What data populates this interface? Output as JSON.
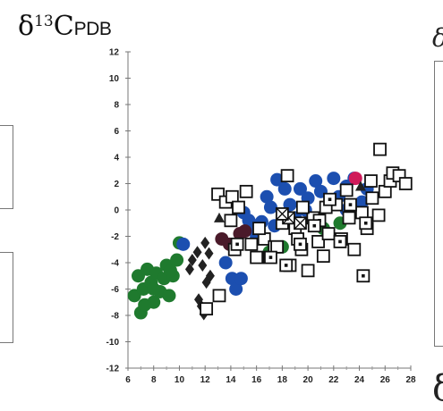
{
  "title": {
    "symbol": "δ",
    "superscript": "13",
    "main": "C",
    "subscript": "PDB"
  },
  "edge_fragments": {
    "top_right": "δ",
    "bottom_right": "δ"
  },
  "chart_data": {
    "type": "scatter",
    "title": "δ13CPDB",
    "xlabel": "",
    "ylabel": "",
    "xlim": [
      6,
      28
    ],
    "ylim": [
      -12,
      12
    ],
    "xticks": [
      6,
      8,
      10,
      12,
      14,
      16,
      18,
      20,
      22,
      24,
      26,
      28
    ],
    "yticks": [
      -12,
      -10,
      -8,
      -6,
      -4,
      -2,
      0,
      2,
      4,
      6,
      8,
      10,
      12
    ],
    "grid": false,
    "legend": "none",
    "series": [
      {
        "marker": "circle-filled",
        "color": "#1f7a2e",
        "points": [
          [
            6.5,
            -6.5
          ],
          [
            6.8,
            -5.0
          ],
          [
            7.0,
            -7.8
          ],
          [
            7.2,
            -6.0
          ],
          [
            7.5,
            -4.5
          ],
          [
            7.8,
            -5.5
          ],
          [
            8.0,
            -7.0
          ],
          [
            8.2,
            -4.8
          ],
          [
            8.5,
            -6.2
          ],
          [
            8.8,
            -5.2
          ],
          [
            9.0,
            -4.2
          ],
          [
            9.2,
            -6.5
          ],
          [
            9.5,
            -5.0
          ],
          [
            9.8,
            -3.8
          ],
          [
            10.0,
            -2.5
          ],
          [
            8.0,
            -6.0
          ],
          [
            7.3,
            -7.2
          ],
          [
            9.3,
            -4.6
          ],
          [
            17.0,
            -3.2
          ],
          [
            21.2,
            -1.4
          ],
          [
            22.5,
            -1.0
          ],
          [
            18.0,
            -2.8
          ]
        ]
      },
      {
        "marker": "circle-filled",
        "color": "#1c4fb0",
        "points": [
          [
            10.3,
            -2.6
          ],
          [
            13.6,
            -4.0
          ],
          [
            14.1,
            -5.2
          ],
          [
            14.4,
            -6.0
          ],
          [
            14.8,
            -5.2
          ],
          [
            15.0,
            -0.2
          ],
          [
            15.5,
            -1.4
          ],
          [
            16.0,
            -2.0
          ],
          [
            16.4,
            -0.9
          ],
          [
            16.8,
            1.0
          ],
          [
            17.1,
            0.2
          ],
          [
            17.4,
            -1.2
          ],
          [
            17.6,
            2.3
          ],
          [
            18.2,
            1.6
          ],
          [
            18.6,
            0.4
          ],
          [
            19.0,
            -0.6
          ],
          [
            19.4,
            1.6
          ],
          [
            20.0,
            0.9
          ],
          [
            20.6,
            2.2
          ],
          [
            21.0,
            1.4
          ],
          [
            21.6,
            0.4
          ],
          [
            22.0,
            2.4
          ],
          [
            22.4,
            1.0
          ],
          [
            23.0,
            1.8
          ],
          [
            23.6,
            2.4
          ],
          [
            24.2,
            0.6
          ],
          [
            24.6,
            1.6
          ],
          [
            15.4,
            -0.8
          ],
          [
            19.8,
            0.0
          ],
          [
            23.0,
            0.0
          ]
        ]
      },
      {
        "marker": "diamond-filled",
        "color": "#222222",
        "points": [
          [
            10.8,
            -4.5
          ],
          [
            11.0,
            -3.8
          ],
          [
            11.4,
            -3.2
          ],
          [
            11.8,
            -4.2
          ],
          [
            12.0,
            -2.5
          ],
          [
            12.3,
            -3.3
          ],
          [
            11.5,
            -6.8
          ],
          [
            11.7,
            -7.3
          ],
          [
            11.9,
            -7.9
          ],
          [
            12.1,
            -5.5
          ],
          [
            12.4,
            -5.0
          ]
        ]
      },
      {
        "marker": "circle-filled",
        "color": "#4a1a2a",
        "points": [
          [
            13.3,
            -2.2
          ],
          [
            13.9,
            -2.6
          ],
          [
            14.7,
            -1.8
          ],
          [
            15.1,
            -1.6
          ]
        ]
      },
      {
        "marker": "circle-filled",
        "color": "#d01a5a",
        "points": [
          [
            23.7,
            2.4
          ]
        ]
      },
      {
        "marker": "triangle-filled",
        "color": "#222222",
        "points": [
          [
            13.1,
            -0.6
          ],
          [
            24.1,
            1.8
          ]
        ]
      },
      {
        "marker": "square-open",
        "color": "#111111",
        "points": [
          [
            12.1,
            -7.5
          ],
          [
            13.1,
            -6.5
          ],
          [
            13.0,
            1.2
          ],
          [
            13.6,
            0.6
          ],
          [
            14.1,
            1.0
          ],
          [
            14.6,
            0.2
          ],
          [
            14.0,
            -0.8
          ],
          [
            14.3,
            -3.0
          ],
          [
            15.2,
            1.4
          ],
          [
            15.6,
            -2.6
          ],
          [
            16.0,
            -3.6
          ],
          [
            16.6,
            -2.2
          ],
          [
            17.0,
            -3.6
          ],
          [
            17.4,
            -2.8
          ],
          [
            18.0,
            -1.0
          ],
          [
            18.4,
            2.6
          ],
          [
            18.6,
            -4.2
          ],
          [
            19.0,
            -1.4
          ],
          [
            19.5,
            -3.0
          ],
          [
            20.0,
            -4.6
          ],
          [
            20.4,
            -0.6
          ],
          [
            20.8,
            -2.4
          ],
          [
            21.2,
            -3.5
          ],
          [
            21.6,
            -1.8
          ],
          [
            22.2,
            0.4
          ],
          [
            22.6,
            -2.2
          ],
          [
            23.2,
            -0.6
          ],
          [
            23.6,
            -3.0
          ],
          [
            24.2,
            -0.2
          ],
          [
            24.6,
            -1.4
          ],
          [
            25.0,
            0.9
          ],
          [
            25.5,
            -0.4
          ],
          [
            26.0,
            1.4
          ],
          [
            26.4,
            2.2
          ],
          [
            26.6,
            2.8
          ],
          [
            27.1,
            2.6
          ],
          [
            27.6,
            2.0
          ],
          [
            25.6,
            4.6
          ],
          [
            24.9,
            2.2
          ],
          [
            23.0,
            1.5
          ],
          [
            21.4,
            0.2
          ],
          [
            19.6,
            0.2
          ],
          [
            17.6,
            -2.8
          ],
          [
            16.2,
            -1.4
          ],
          [
            19.2,
            -2.2
          ]
        ]
      },
      {
        "marker": "square-dot",
        "color": "#111111",
        "points": [
          [
            14.5,
            -2.6
          ],
          [
            17.1,
            -3.6
          ],
          [
            18.3,
            -4.2
          ],
          [
            19.4,
            -2.6
          ],
          [
            20.9,
            -0.8
          ],
          [
            21.7,
            0.8
          ],
          [
            22.5,
            -2.4
          ],
          [
            23.3,
            0.4
          ],
          [
            24.3,
            -5.0
          ],
          [
            24.5,
            -1.0
          ],
          [
            20.5,
            -1.2
          ]
        ]
      },
      {
        "marker": "square-x",
        "color": "#111111",
        "points": [
          [
            18.5,
            -0.6
          ],
          [
            19.4,
            -1.0
          ],
          [
            18.0,
            -0.3
          ]
        ]
      }
    ]
  }
}
